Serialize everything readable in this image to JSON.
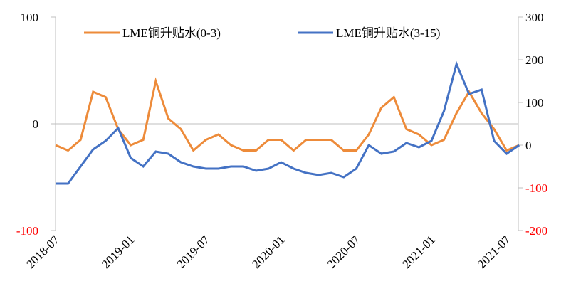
{
  "chart_data": {
    "type": "line",
    "x": [
      "2018-07",
      "2018-08",
      "2018-09",
      "2018-10",
      "2018-11",
      "2018-12",
      "2019-01",
      "2019-02",
      "2019-03",
      "2019-04",
      "2019-05",
      "2019-06",
      "2019-07",
      "2019-08",
      "2019-09",
      "2019-10",
      "2019-11",
      "2019-12",
      "2020-01",
      "2020-02",
      "2020-03",
      "2020-04",
      "2020-05",
      "2020-06",
      "2020-07",
      "2020-08",
      "2020-09",
      "2020-10",
      "2020-11",
      "2020-12",
      "2021-01",
      "2021-02",
      "2021-03",
      "2021-04",
      "2021-05",
      "2021-06",
      "2021-07",
      "2021-08"
    ],
    "xticks": [
      "2018-07",
      "2019-01",
      "2019-07",
      "2020-01",
      "2020-07",
      "2021-01",
      "2021-07"
    ],
    "series": [
      {
        "name": "LME铜升贴水(0-3)",
        "color": "#ed8b3a",
        "axis": "y",
        "values": [
          -20,
          -25,
          -15,
          30,
          25,
          -5,
          -20,
          -15,
          40,
          5,
          -5,
          -25,
          -15,
          -10,
          -20,
          -25,
          -25,
          -15,
          -15,
          -25,
          -15,
          -15,
          -15,
          -25,
          -25,
          -10,
          15,
          25,
          -5,
          -10,
          -20,
          -15,
          10,
          30,
          10,
          -5,
          -25,
          -20
        ]
      },
      {
        "name": "LME铜升贴水(3-15)",
        "color": "#4472c4",
        "axis": "y2",
        "values": [
          -90,
          -90,
          -50,
          -10,
          10,
          40,
          -30,
          -50,
          -15,
          -20,
          -40,
          -50,
          -55,
          -55,
          -50,
          -50,
          -60,
          -55,
          -40,
          -55,
          -65,
          -70,
          -65,
          -75,
          -55,
          0,
          -20,
          -15,
          5,
          -5,
          10,
          80,
          190,
          120,
          130,
          10,
          -20,
          0
        ]
      }
    ],
    "ylim": [
      -100,
      100
    ],
    "yticks": [
      -100,
      0,
      100
    ],
    "y2lim": [
      -200,
      300
    ],
    "y2ticks": [
      -200,
      -100,
      0,
      100,
      200,
      300
    ],
    "negative_tick_color": "#ff0000"
  }
}
